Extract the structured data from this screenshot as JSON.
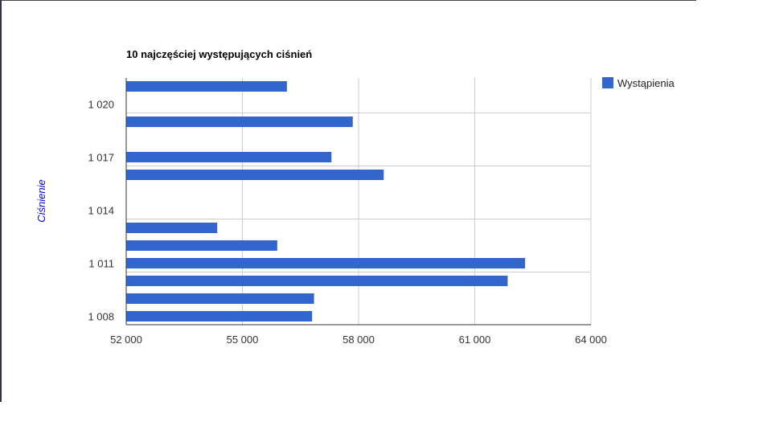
{
  "chart_data": {
    "type": "bar",
    "orientation": "horizontal",
    "title": "10 najczęściej występujących ciśnień",
    "ylabel": "Ciśnienie",
    "xlabel": "",
    "y_ticks": [
      "1 020",
      "1 017",
      "1 014",
      "1 011",
      "1 008"
    ],
    "x_ticks": [
      "52 000",
      "55 000",
      "58 000",
      "61 000",
      "64 000"
    ],
    "xlim": [
      52000,
      64000
    ],
    "ylim": [
      1007.5,
      1021.5
    ],
    "grid": true,
    "legend_position": "right",
    "series": [
      {
        "name": "Wystąpienia",
        "color": "#3366cc",
        "points": [
          {
            "y": 1021,
            "x": 56150
          },
          {
            "y": 1019,
            "x": 57850
          },
          {
            "y": 1017,
            "x": 57300
          },
          {
            "y": 1016,
            "x": 58650
          },
          {
            "y": 1013,
            "x": 54350
          },
          {
            "y": 1012,
            "x": 55900
          },
          {
            "y": 1011,
            "x": 62300
          },
          {
            "y": 1010,
            "x": 61850
          },
          {
            "y": 1009,
            "x": 56850
          },
          {
            "y": 1008,
            "x": 56800
          }
        ]
      }
    ],
    "ylabel_color": "#0000cc"
  }
}
